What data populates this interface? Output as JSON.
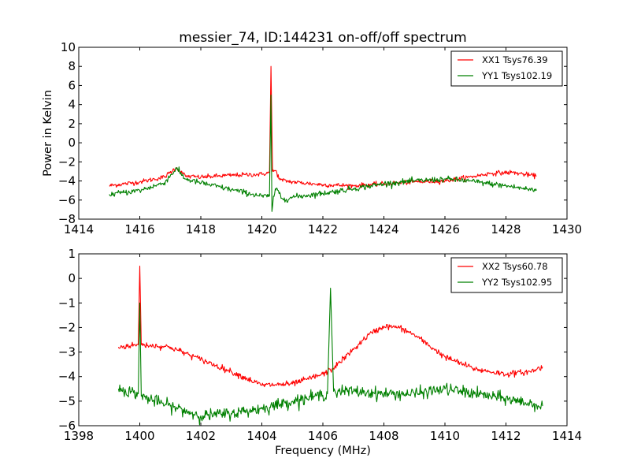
{
  "chart_data": [
    {
      "type": "line",
      "title": "messier_74, ID:144231 on-off/off spectrum",
      "xlabel": "",
      "ylabel": "Power in Kelvin",
      "xlim": [
        1414,
        1430
      ],
      "ylim": [
        -8,
        10
      ],
      "xticks": [
        "1414",
        "1416",
        "1418",
        "1420",
        "1422",
        "1424",
        "1426",
        "1428",
        "1430"
      ],
      "xtick_values": [
        1414,
        1416,
        1418,
        1420,
        1422,
        1424,
        1426,
        1428,
        1430
      ],
      "yticks": [
        "−8",
        "−6",
        "−4",
        "−2",
        "0",
        "2",
        "4",
        "6",
        "8",
        "10"
      ],
      "ytick_values": [
        -8,
        -6,
        -4,
        -2,
        0,
        2,
        4,
        6,
        8,
        10
      ],
      "legend_position": "top-right",
      "series": [
        {
          "name": "XX1 Tsys76.39",
          "color": "#ff0000",
          "noise": 0.12,
          "x": [
            1415.0,
            1416.0,
            1416.8,
            1417.2,
            1417.5,
            1418.0,
            1419.0,
            1420.0,
            1420.25,
            1420.3,
            1420.35,
            1420.45,
            1420.6,
            1421.0,
            1422.0,
            1423.0,
            1424.0,
            1425.0,
            1426.0,
            1426.8,
            1427.5,
            1428.2,
            1429.0
          ],
          "y": [
            -4.5,
            -4.1,
            -3.6,
            -2.6,
            -3.5,
            -3.6,
            -3.4,
            -3.3,
            -3.1,
            8.0,
            -3.0,
            -2.9,
            -3.9,
            -4.1,
            -4.4,
            -4.5,
            -4.3,
            -4.1,
            -4.0,
            -3.6,
            -3.2,
            -3.1,
            -3.5
          ]
        },
        {
          "name": "YY1 Tsys102.19",
          "color": "#008000",
          "noise": 0.15,
          "x": [
            1415.0,
            1416.0,
            1416.8,
            1417.2,
            1417.5,
            1418.0,
            1419.0,
            1420.0,
            1420.25,
            1420.3,
            1420.33,
            1420.38,
            1420.5,
            1420.65,
            1420.8,
            1421.0,
            1422.0,
            1423.0,
            1424.0,
            1425.0,
            1426.0,
            1426.8,
            1427.5,
            1428.2,
            1429.0
          ],
          "y": [
            -5.4,
            -5.0,
            -4.2,
            -2.7,
            -3.8,
            -4.2,
            -4.9,
            -5.6,
            -5.6,
            5.0,
            -7.2,
            -5.6,
            -4.8,
            -5.8,
            -5.9,
            -5.7,
            -5.3,
            -4.8,
            -4.3,
            -4.0,
            -3.8,
            -4.0,
            -4.3,
            -4.6,
            -5.0
          ]
        }
      ]
    },
    {
      "type": "line",
      "title": "",
      "xlabel": "Frequency (MHz)",
      "ylabel": "",
      "xlim": [
        1398,
        1414
      ],
      "ylim": [
        -6,
        1
      ],
      "xticks": [
        "1398",
        "1400",
        "1402",
        "1404",
        "1406",
        "1408",
        "1410",
        "1412",
        "1414"
      ],
      "xtick_values": [
        1398,
        1400,
        1402,
        1404,
        1406,
        1408,
        1410,
        1412,
        1414
      ],
      "yticks": [
        "−6",
        "−5",
        "−4",
        "−3",
        "−2",
        "−1",
        "0",
        "1"
      ],
      "ytick_values": [
        -6,
        -5,
        -4,
        -3,
        -2,
        -1,
        0,
        1
      ],
      "legend_position": "top-right",
      "series": [
        {
          "name": "XX2 Tsys60.78",
          "color": "#ff0000",
          "noise": 0.06,
          "x": [
            1399.3,
            1399.95,
            1400.0,
            1400.05,
            1401.0,
            1402.0,
            1403.0,
            1404.0,
            1405.0,
            1406.0,
            1406.3,
            1407.0,
            1407.5,
            1408.0,
            1408.5,
            1409.0,
            1410.0,
            1411.0,
            1412.0,
            1412.8,
            1413.2
          ],
          "y": [
            -2.8,
            -2.7,
            0.5,
            -2.7,
            -2.8,
            -3.3,
            -3.8,
            -4.35,
            -4.3,
            -3.9,
            -3.7,
            -2.9,
            -2.3,
            -1.95,
            -2.0,
            -2.3,
            -3.2,
            -3.7,
            -3.9,
            -3.8,
            -3.6
          ]
        },
        {
          "name": "YY2 Tsys102.95",
          "color": "#008000",
          "noise": 0.12,
          "x": [
            1399.3,
            1399.95,
            1400.0,
            1400.05,
            1401.0,
            1402.0,
            1403.0,
            1404.0,
            1405.0,
            1406.15,
            1406.25,
            1406.35,
            1407.0,
            1408.0,
            1409.0,
            1410.0,
            1411.0,
            1412.0,
            1413.2
          ],
          "y": [
            -4.5,
            -4.7,
            -1.0,
            -4.8,
            -5.2,
            -5.6,
            -5.5,
            -5.3,
            -5.0,
            -4.7,
            -0.4,
            -4.6,
            -4.6,
            -4.7,
            -4.7,
            -4.5,
            -4.7,
            -4.9,
            -5.2
          ]
        }
      ]
    }
  ]
}
